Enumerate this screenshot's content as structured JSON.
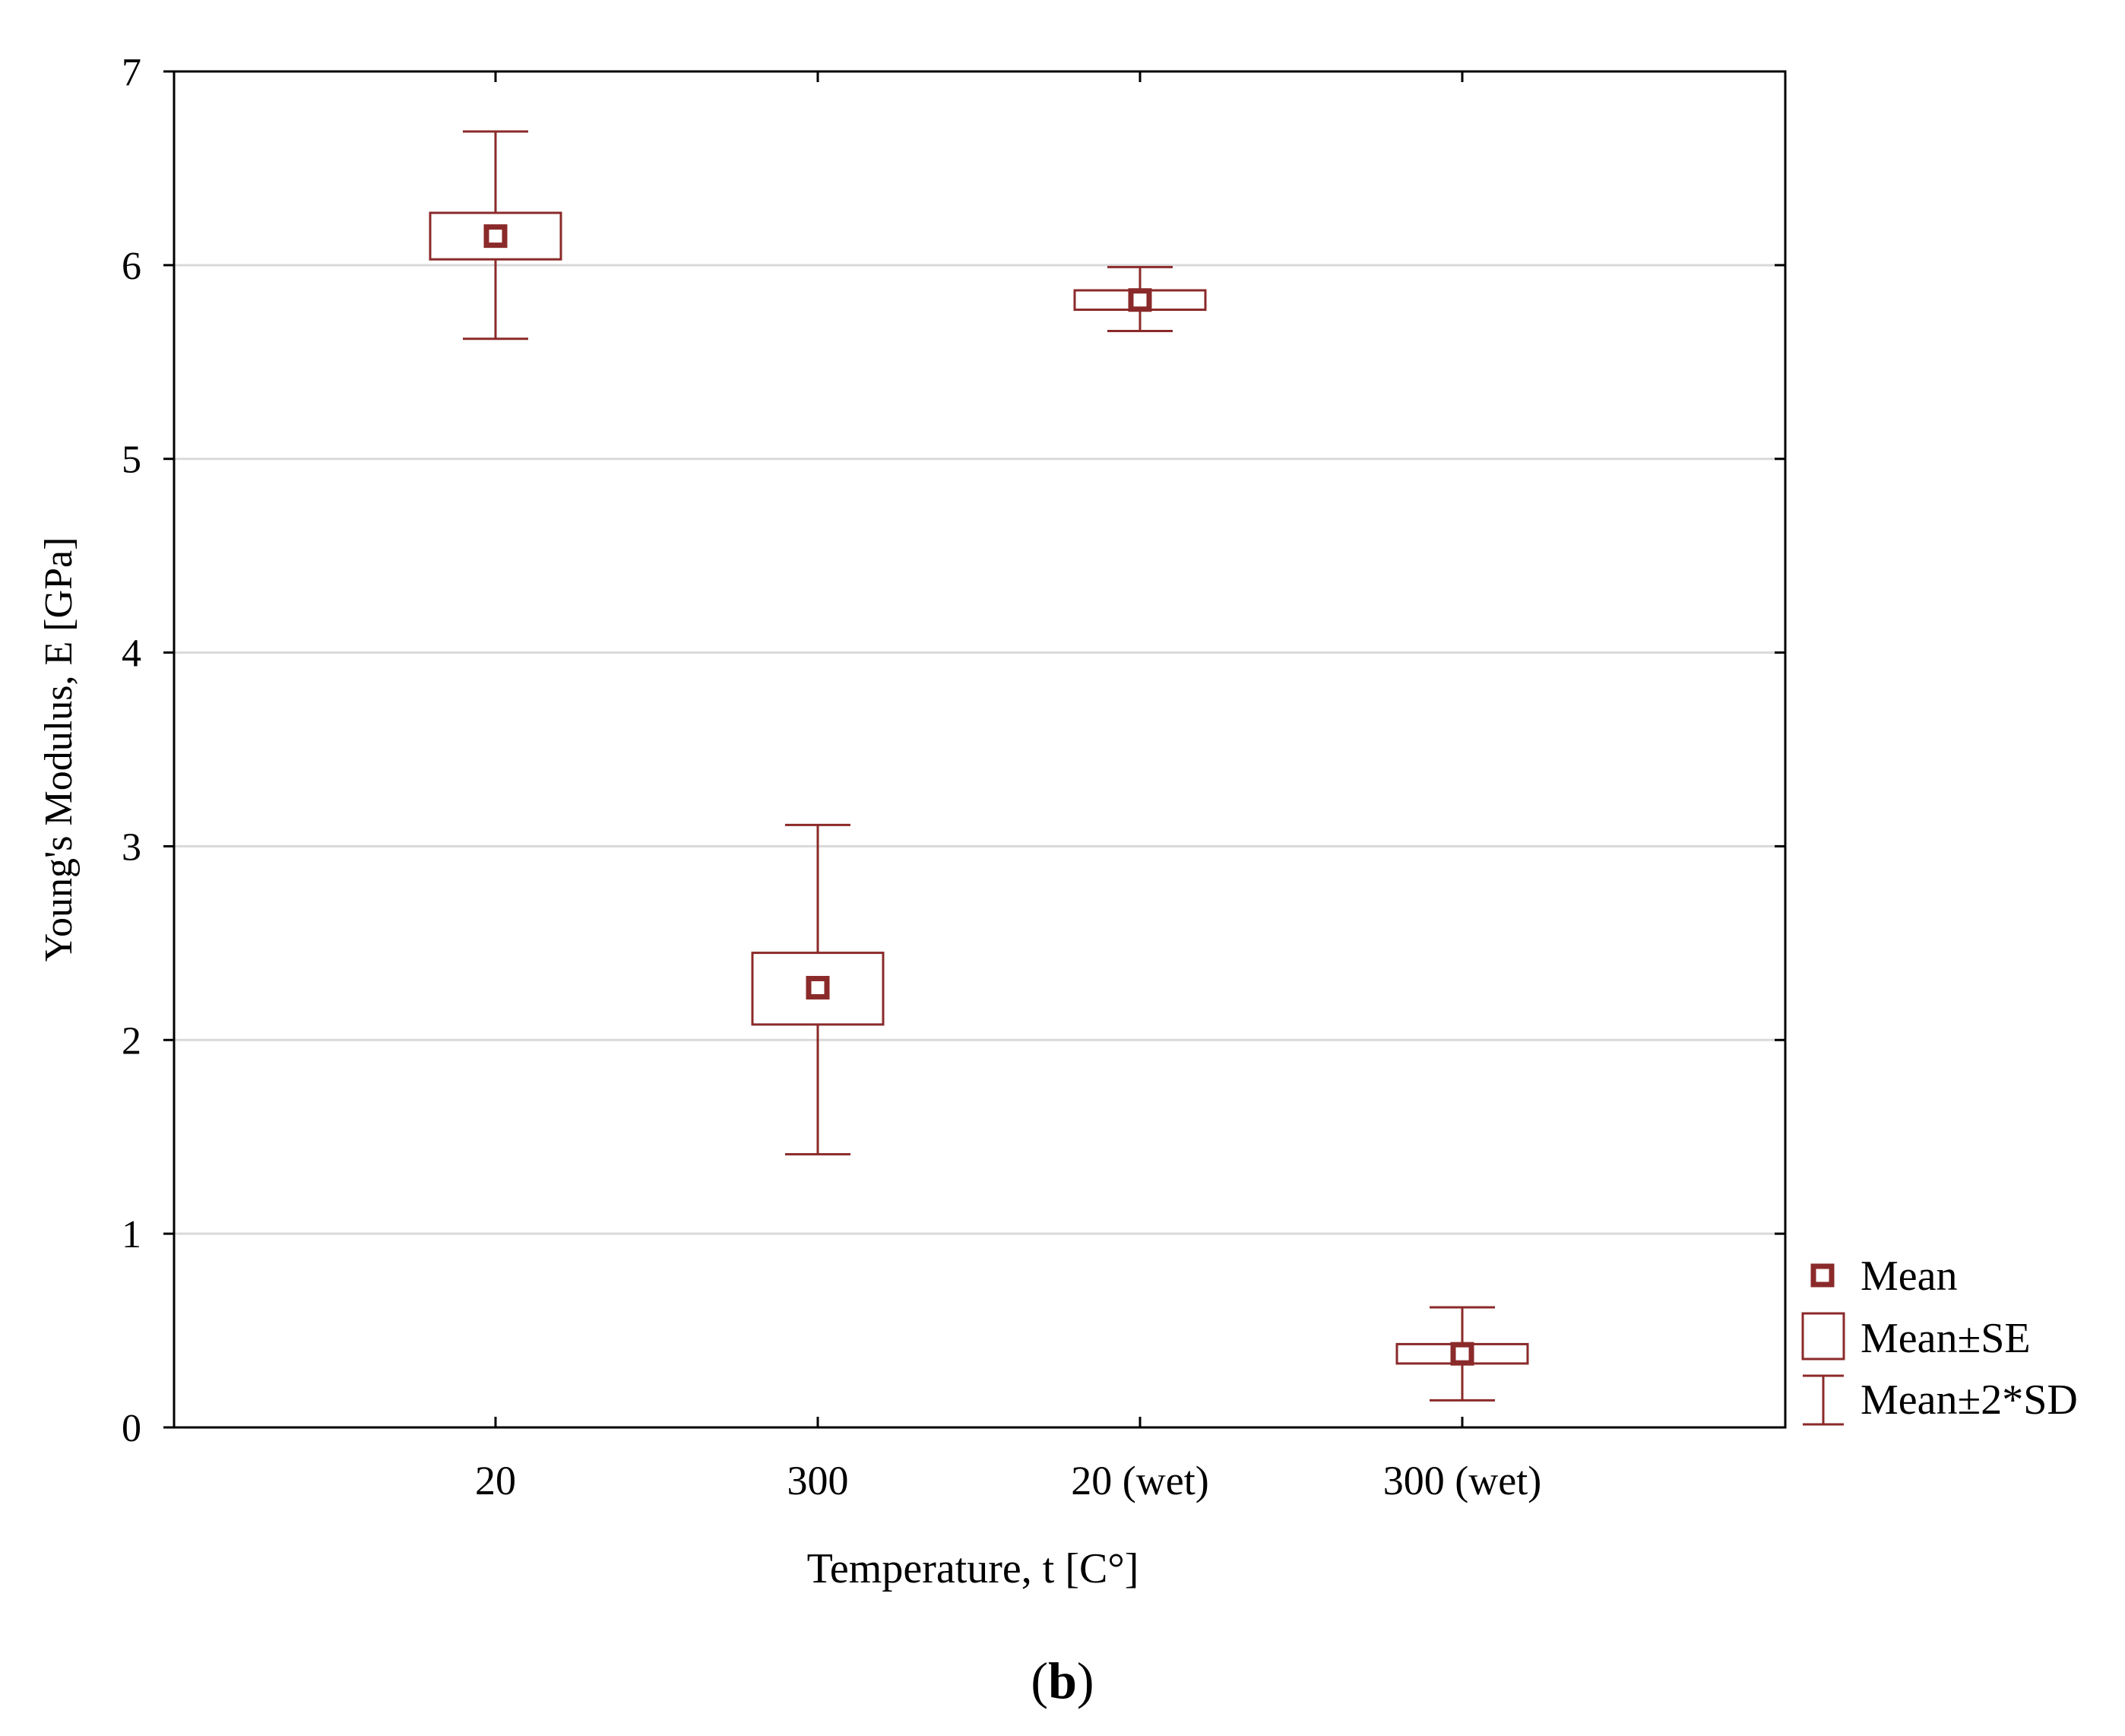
{
  "chart_data": {
    "type": "box",
    "title": "",
    "xlabel": "Temperature, t [C°]",
    "ylabel": "Young's Modulus, E [GPa]",
    "ylim": [
      0,
      7
    ],
    "yticks": [
      "0",
      "1",
      "2",
      "3",
      "4",
      "5",
      "6",
      "7"
    ],
    "grid": true,
    "categories": [
      "20",
      "300",
      "20 (wet)",
      "300 (wet)"
    ],
    "series": [
      {
        "name": "Young's Modulus",
        "mean": [
          6.15,
          2.27,
          5.82,
          0.38
        ],
        "se_low": [
          6.03,
          2.08,
          5.77,
          0.33
        ],
        "se_high": [
          6.27,
          2.45,
          5.87,
          0.43
        ],
        "sd2_low": [
          5.62,
          1.41,
          5.66,
          0.14
        ],
        "sd2_high": [
          6.69,
          3.11,
          5.99,
          0.62
        ]
      }
    ],
    "legend": {
      "placement": "right",
      "items": [
        "Mean",
        "Mean±SE",
        "Mean±2*SD"
      ]
    },
    "panel_label": {
      "open": "(",
      "letter": "b",
      "close": ")"
    },
    "colors": {
      "mark": "#8b2a2a",
      "axis": "#000000",
      "grid": "#d9d9d9"
    }
  }
}
